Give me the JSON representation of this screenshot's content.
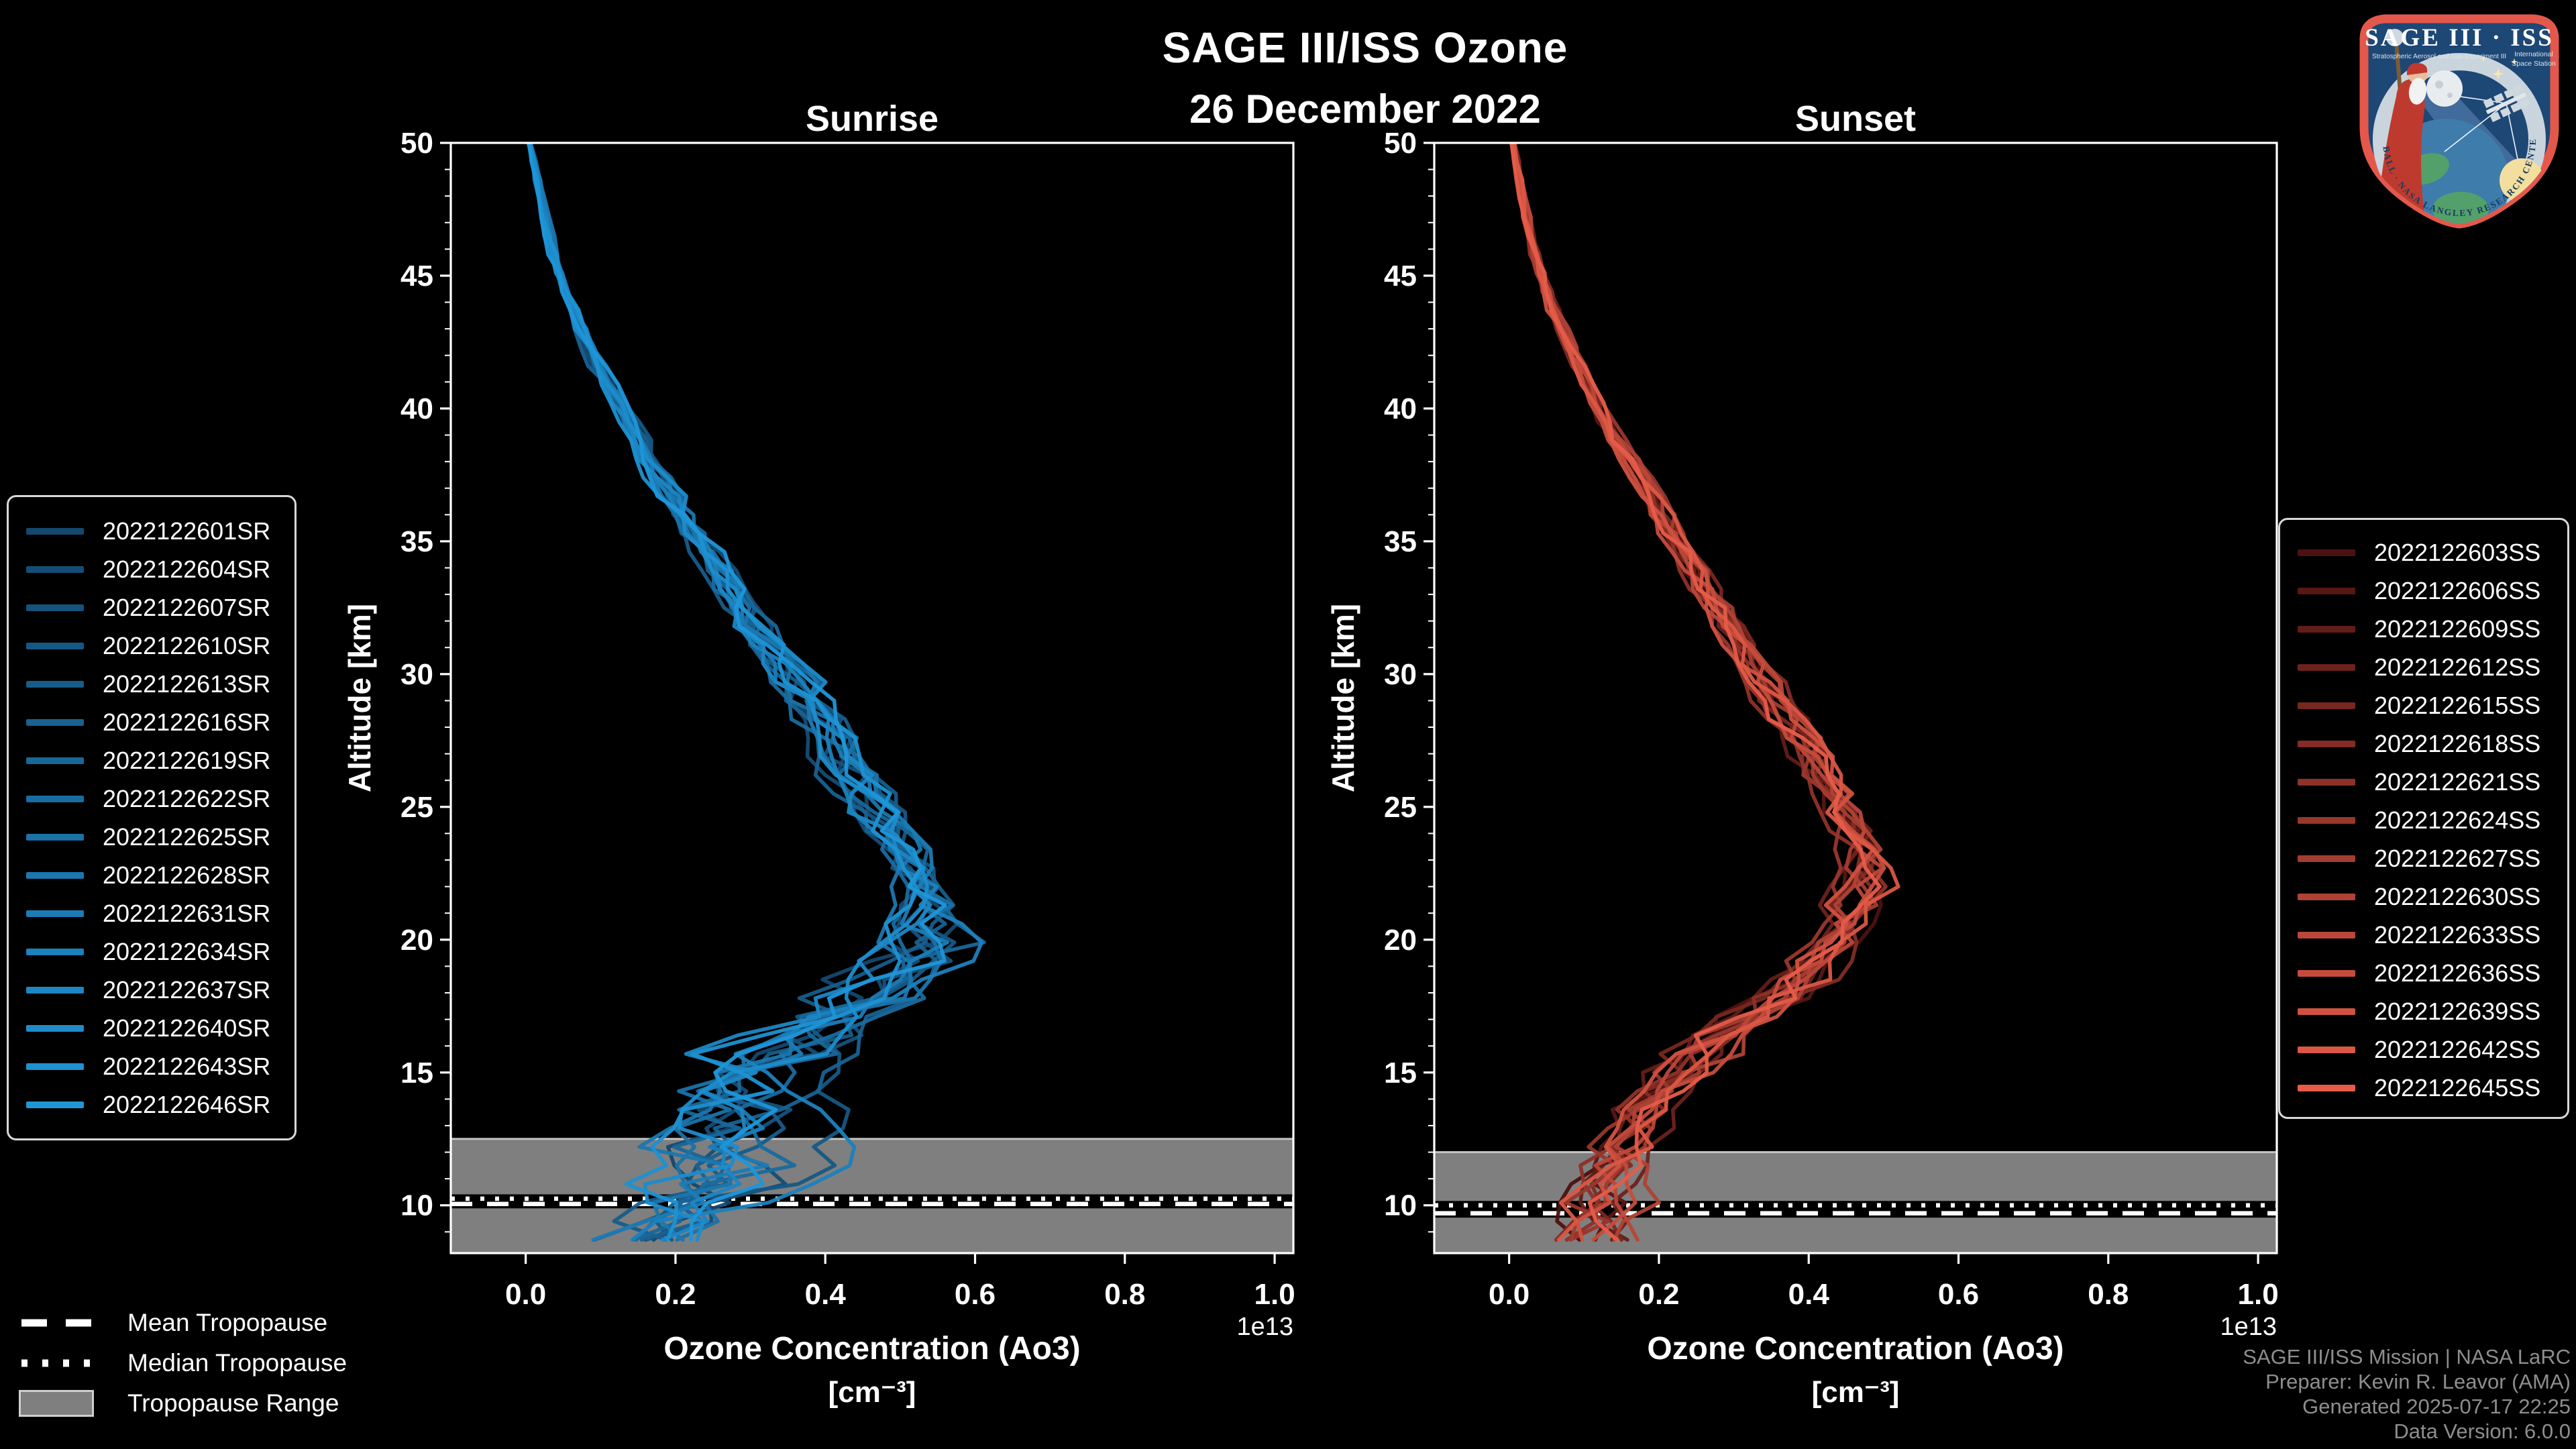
{
  "title": {
    "main": "SAGE III/ISS Ozone",
    "date": "26 December 2022"
  },
  "chart_data": {
    "type": "line",
    "title": "SAGE III/ISS Ozone",
    "subtitle": "26 December 2022",
    "x_axis": {
      "label_line1": "Ozone Concentration (Ao3)",
      "label_line2": "[cm⁻³]",
      "offset_text": "1e13",
      "ticks": [
        "0.0",
        "0.2",
        "0.4",
        "0.6",
        "0.8",
        "1.0"
      ],
      "range": [
        -0.1,
        1.025
      ]
    },
    "y_axis": {
      "label": "Altitude [km]",
      "ticks": [
        10,
        15,
        20,
        25,
        30,
        35,
        40,
        45,
        50
      ],
      "range": [
        8.2,
        50
      ],
      "minor_step": 1
    },
    "grid": false,
    "background": "#000000",
    "panels": [
      {
        "key": "sunrise",
        "title": "Sunrise",
        "color_ramp": [
          "#14486f",
          "#1f96d9"
        ],
        "line_width": 5.5,
        "tropopause": {
          "mean_km": 10.05,
          "median_km": 10.25,
          "range_top_km": 12.5,
          "range_bottom_km": 8.2,
          "band_color": "#7f7f7f",
          "band_edge_color": "#c2c2c2",
          "line_color": "#ffffff"
        },
        "base_profile": [
          [
            50,
            0.005,
            0.004
          ],
          [
            48,
            0.02,
            0.006
          ],
          [
            46,
            0.035,
            0.008
          ],
          [
            44,
            0.06,
            0.01
          ],
          [
            42,
            0.09,
            0.013
          ],
          [
            40,
            0.13,
            0.016
          ],
          [
            38,
            0.17,
            0.02
          ],
          [
            36,
            0.21,
            0.025
          ],
          [
            34,
            0.26,
            0.03
          ],
          [
            32,
            0.3,
            0.035
          ],
          [
            30,
            0.35,
            0.04
          ],
          [
            28,
            0.4,
            0.045
          ],
          [
            26,
            0.44,
            0.05
          ],
          [
            25,
            0.46,
            0.05
          ],
          [
            24,
            0.48,
            0.052
          ],
          [
            23,
            0.5,
            0.055
          ],
          [
            22,
            0.52,
            0.06
          ],
          [
            21,
            0.53,
            0.065
          ],
          [
            20,
            0.54,
            0.08
          ],
          [
            19,
            0.5,
            0.1
          ],
          [
            18,
            0.46,
            0.11
          ],
          [
            17,
            0.41,
            0.12
          ],
          [
            16,
            0.36,
            0.13
          ],
          [
            15,
            0.31,
            0.14
          ],
          [
            14,
            0.29,
            0.14
          ],
          [
            13,
            0.28,
            0.14
          ],
          [
            12,
            0.27,
            0.14
          ],
          [
            11,
            0.24,
            0.15
          ],
          [
            10,
            0.19,
            0.13
          ],
          [
            9,
            0.16,
            0.12
          ],
          [
            8.2,
            0.16,
            0.13
          ]
        ],
        "series": [
          {
            "label": "2022122601SR",
            "seed": 11
          },
          {
            "label": "2022122604SR",
            "seed": 47
          },
          {
            "label": "2022122607SR",
            "seed": 83
          },
          {
            "label": "2022122610SR",
            "seed": 119
          },
          {
            "label": "2022122613SR",
            "seed": 155
          },
          {
            "label": "2022122616SR",
            "seed": 191
          },
          {
            "label": "2022122619SR",
            "seed": 227
          },
          {
            "label": "2022122622SR",
            "seed": 263
          },
          {
            "label": "2022122625SR",
            "seed": 299
          },
          {
            "label": "2022122628SR",
            "seed": 335
          },
          {
            "label": "2022122631SR",
            "seed": 371
          },
          {
            "label": "2022122634SR",
            "seed": 407
          },
          {
            "label": "2022122637SR",
            "seed": 443
          },
          {
            "label": "2022122640SR",
            "seed": 479
          },
          {
            "label": "2022122643SR",
            "seed": 515
          },
          {
            "label": "2022122646SR",
            "seed": 551
          }
        ]
      },
      {
        "key": "sunset",
        "title": "Sunset",
        "color_ramp": [
          "#4c1210",
          "#e65c49"
        ],
        "line_width": 5.5,
        "tropopause": {
          "mean_km": 9.7,
          "median_km": 10.0,
          "range_top_km": 12.0,
          "range_bottom_km": 8.2,
          "band_color": "#7f7f7f",
          "band_edge_color": "#c2c2c2",
          "line_color": "#ffffff"
        },
        "base_profile": [
          [
            50,
            0.005,
            0.004
          ],
          [
            48,
            0.018,
            0.006
          ],
          [
            46,
            0.032,
            0.008
          ],
          [
            44,
            0.055,
            0.009
          ],
          [
            42,
            0.085,
            0.012
          ],
          [
            40,
            0.12,
            0.014
          ],
          [
            38,
            0.16,
            0.018
          ],
          [
            36,
            0.2,
            0.022
          ],
          [
            34,
            0.245,
            0.026
          ],
          [
            32,
            0.29,
            0.03
          ],
          [
            30,
            0.33,
            0.033
          ],
          [
            28,
            0.38,
            0.036
          ],
          [
            26,
            0.42,
            0.04
          ],
          [
            25,
            0.44,
            0.042
          ],
          [
            24,
            0.46,
            0.045
          ],
          [
            23,
            0.475,
            0.045
          ],
          [
            22,
            0.47,
            0.048
          ],
          [
            21,
            0.455,
            0.048
          ],
          [
            20,
            0.44,
            0.05
          ],
          [
            19,
            0.41,
            0.052
          ],
          [
            18,
            0.37,
            0.055
          ],
          [
            17,
            0.32,
            0.058
          ],
          [
            16,
            0.27,
            0.06
          ],
          [
            15,
            0.23,
            0.065
          ],
          [
            14,
            0.2,
            0.07
          ],
          [
            13,
            0.17,
            0.068
          ],
          [
            12,
            0.155,
            0.068
          ],
          [
            11,
            0.14,
            0.068
          ],
          [
            10,
            0.13,
            0.068
          ],
          [
            9,
            0.12,
            0.068
          ],
          [
            8.2,
            0.12,
            0.075
          ]
        ],
        "series": [
          {
            "label": "2022122603SS",
            "seed": 21
          },
          {
            "label": "2022122606SS",
            "seed": 58
          },
          {
            "label": "2022122609SS",
            "seed": 95
          },
          {
            "label": "2022122612SS",
            "seed": 132
          },
          {
            "label": "2022122615SS",
            "seed": 169
          },
          {
            "label": "2022122618SS",
            "seed": 206
          },
          {
            "label": "2022122621SS",
            "seed": 243
          },
          {
            "label": "2022122624SS",
            "seed": 280
          },
          {
            "label": "2022122627SS",
            "seed": 317
          },
          {
            "label": "2022122630SS",
            "seed": 354
          },
          {
            "label": "2022122633SS",
            "seed": 391
          },
          {
            "label": "2022122636SS",
            "seed": 428
          },
          {
            "label": "2022122639SS",
            "seed": 465
          },
          {
            "label": "2022122642SS",
            "seed": 502
          },
          {
            "label": "2022122645SS",
            "seed": 539
          }
        ]
      }
    ]
  },
  "tropopause_legend": {
    "mean": "Mean Tropopause",
    "median": "Median Tropopause",
    "range": "Tropopause Range"
  },
  "attribution": {
    "lines": [
      "SAGE III/ISS Mission | NASA LaRC",
      "Preparer: Kevin R. Leavor (AMA)",
      "Generated 2025-07-17 22:25",
      "Data Version: 6.0.0"
    ]
  },
  "logo": {
    "title": "SAGE III · ISS",
    "subtitle": "Stratospheric Aerosol and Gas Experiment III",
    "iss_line1": "International",
    "iss_line2": "Space Station",
    "ring_text": "BALL · NASA LANGLEY RESEARCH CENTER · TAS-I · ESA"
  }
}
